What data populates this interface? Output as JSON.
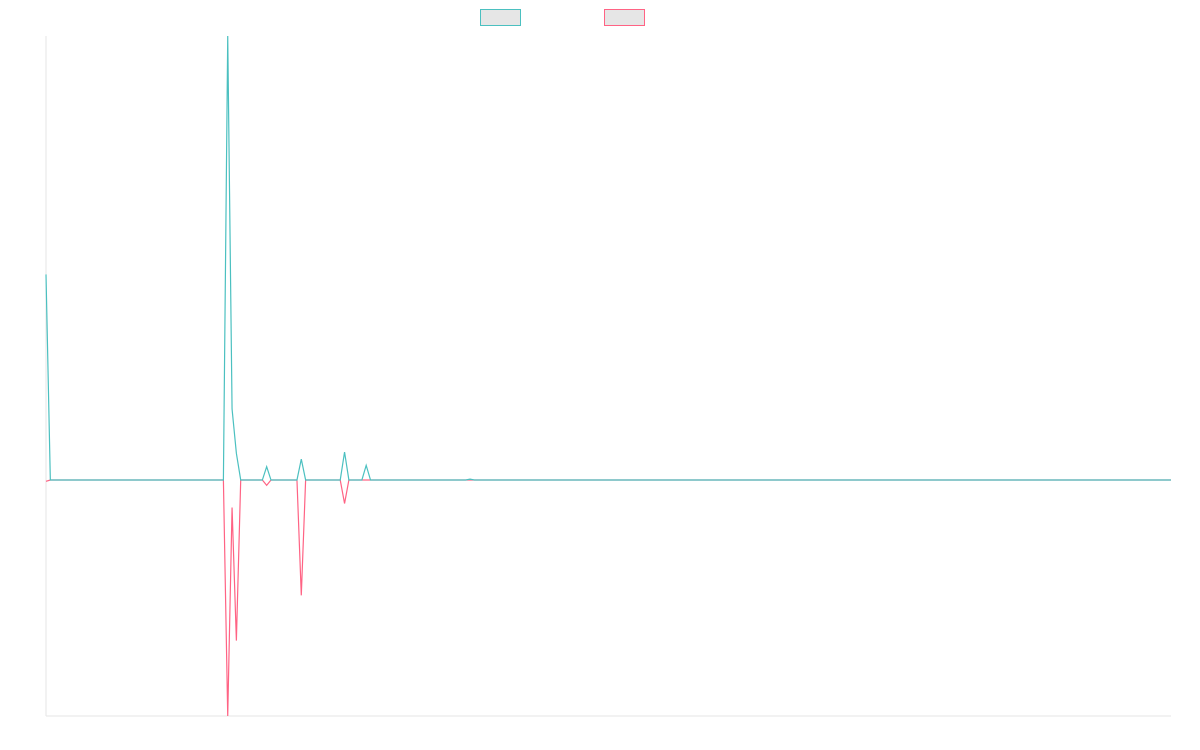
{
  "chart_data": {
    "type": "line",
    "title": "",
    "xlabel": "",
    "ylabel": "",
    "x": [
      0,
      1,
      2,
      3,
      4,
      5,
      6,
      7,
      8,
      9,
      10,
      11,
      12,
      13,
      14,
      15,
      16,
      17,
      18,
      19,
      20,
      21,
      22,
      23,
      24,
      25,
      26,
      27,
      28,
      29,
      30,
      31,
      32,
      33,
      34,
      35,
      36,
      37,
      38,
      39,
      40,
      41,
      42,
      43,
      44,
      45,
      46,
      47,
      48,
      49,
      50,
      51,
      52,
      53,
      54,
      55,
      56,
      57,
      58,
      59,
      60,
      61,
      62,
      63,
      64,
      65,
      66,
      67,
      68,
      69,
      70,
      71,
      72,
      73,
      74,
      75,
      76,
      77,
      78,
      79,
      80,
      81,
      82,
      83,
      84,
      85,
      86,
      87,
      88,
      89,
      90,
      91,
      92,
      93,
      94,
      95,
      96,
      97,
      98,
      99,
      100,
      101,
      102,
      103,
      104,
      105,
      106,
      107,
      108,
      109,
      110,
      111,
      112,
      113,
      114,
      115,
      116,
      117,
      118,
      119,
      120,
      121,
      122,
      123,
      124,
      125,
      126,
      127,
      128,
      129,
      130,
      131,
      132,
      133,
      134,
      135,
      136,
      137,
      138,
      139,
      140,
      141,
      142,
      143,
      144,
      145,
      146,
      147,
      148,
      149,
      150,
      151,
      152,
      153,
      154,
      155,
      156,
      157,
      158,
      159,
      160,
      161,
      162,
      163,
      164,
      165,
      166,
      167,
      168,
      169,
      170,
      171,
      172,
      173,
      174,
      175,
      176,
      177,
      178,
      179,
      180,
      181,
      182,
      183,
      184,
      185,
      186,
      187,
      188,
      189,
      190,
      191,
      192,
      193,
      194,
      195,
      196,
      197,
      198,
      199,
      200,
      201,
      202,
      203,
      204,
      205,
      206,
      207,
      208,
      209,
      210,
      211,
      212,
      213,
      214,
      215,
      216,
      217,
      218,
      219,
      220,
      221,
      222,
      223,
      224,
      225,
      226,
      227,
      228,
      229,
      230,
      231,
      232,
      233,
      234,
      235,
      236,
      237,
      238,
      239,
      240,
      241,
      242,
      243,
      244,
      245,
      246,
      247,
      248,
      249,
      250,
      251,
      252,
      253,
      254,
      255,
      256,
      257,
      258,
      259,
      260
    ],
    "series": [
      {
        "name": "",
        "color": "#4bc0c0",
        "points": [
          [
            0,
            0.463
          ],
          [
            1,
            0
          ],
          [
            41,
            0
          ],
          [
            42,
            1.0
          ],
          [
            43,
            0.16
          ],
          [
            44,
            0.06
          ],
          [
            45,
            0
          ],
          [
            50,
            0
          ],
          [
            51,
            0.03
          ],
          [
            52,
            0
          ],
          [
            58,
            0
          ],
          [
            59,
            0.047
          ],
          [
            60,
            0
          ],
          [
            68,
            0
          ],
          [
            69,
            0.063
          ],
          [
            70,
            0
          ],
          [
            73,
            0
          ],
          [
            74,
            0.033
          ],
          [
            75,
            0
          ],
          [
            97,
            0
          ],
          [
            98,
            0.002
          ],
          [
            99,
            0
          ],
          [
            260,
            0
          ]
        ]
      },
      {
        "name": "",
        "color": "#ff6384",
        "points": [
          [
            0,
            -0.003
          ],
          [
            1,
            0
          ],
          [
            41,
            0
          ],
          [
            42,
            -0.532
          ],
          [
            43,
            -0.062
          ],
          [
            44,
            -0.362
          ],
          [
            45,
            0
          ],
          [
            50,
            0
          ],
          [
            51,
            -0.012
          ],
          [
            52,
            0
          ],
          [
            58,
            0
          ],
          [
            59,
            -0.26
          ],
          [
            60,
            0
          ],
          [
            68,
            0
          ],
          [
            69,
            -0.053
          ],
          [
            70,
            0
          ],
          [
            260,
            0
          ]
        ]
      }
    ],
    "xlim": [
      0,
      260
    ],
    "ylim": [
      -0.532,
      1.0
    ],
    "grid": false,
    "legend": "top-center",
    "axes": {
      "left_axis": true,
      "bottom_axis": true,
      "tick_labels": false
    }
  }
}
